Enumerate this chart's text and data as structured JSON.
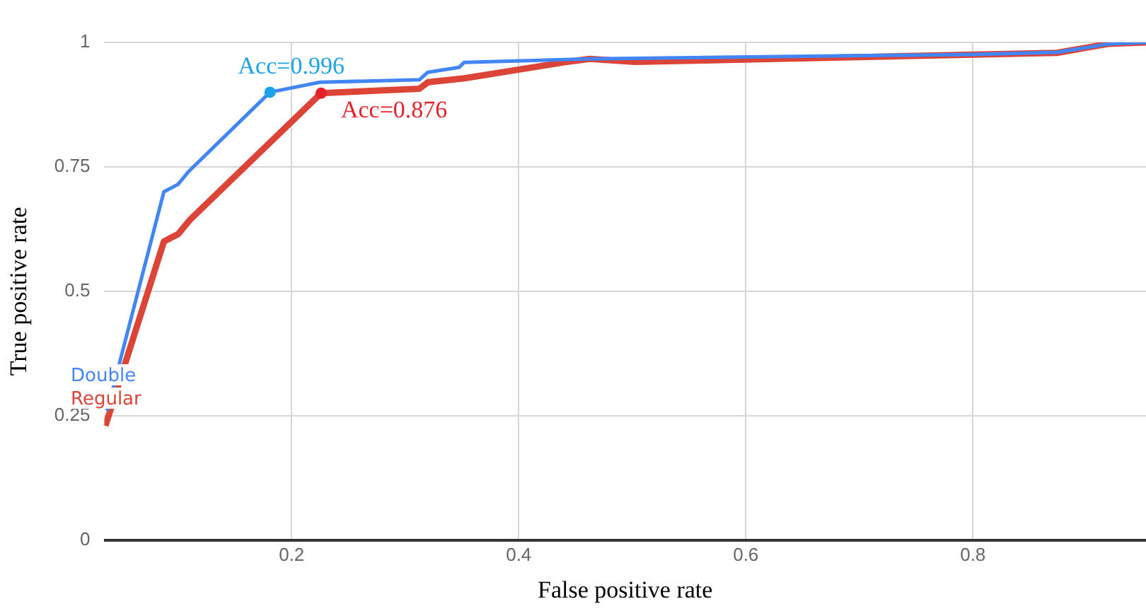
{
  "chart_data": {
    "type": "line",
    "xlabel": "False positive rate",
    "ylabel": "True positive rate",
    "xlim": [
      0.035,
      0.9525
    ],
    "xticks": [
      0.2,
      0.4,
      0.6,
      0.8
    ],
    "ylim": [
      0,
      1
    ],
    "yticks": [
      0,
      0.25,
      0.5,
      0.75,
      1
    ],
    "grid": true,
    "legend": false,
    "marker": "none",
    "series": [
      {
        "name": "Double",
        "color": "#4285f4",
        "x": [
          0.0375,
          0.0875,
          0.1,
          0.109,
          0.181,
          0.225,
          0.3125,
          0.32,
          0.3475,
          0.352,
          0.4625,
          0.8,
          0.874,
          0.92,
          0.9525
        ],
        "values": [
          0.26,
          0.7,
          0.715,
          0.74,
          0.9,
          0.92,
          0.925,
          0.94,
          0.95,
          0.96,
          0.967,
          0.976,
          0.98,
          0.997,
          1.0
        ]
      },
      {
        "name": "Regular",
        "color": "#db4437",
        "x": [
          0.036,
          0.0875,
          0.1,
          0.111,
          0.226,
          0.3125,
          0.32,
          0.352,
          0.44,
          0.4625,
          0.5025,
          0.874,
          0.919,
          0.9525
        ],
        "values": [
          0.23,
          0.6,
          0.615,
          0.645,
          0.898,
          0.907,
          0.92,
          0.928,
          0.96,
          0.967,
          0.961,
          0.979,
          0.997,
          1.0
        ]
      }
    ],
    "annotations": [
      {
        "text": "Acc=0.996",
        "x": 0.181,
        "y": 0.9
      },
      {
        "text": "Acc=0.876",
        "x": 0.226,
        "y": 0.898
      }
    ]
  }
}
